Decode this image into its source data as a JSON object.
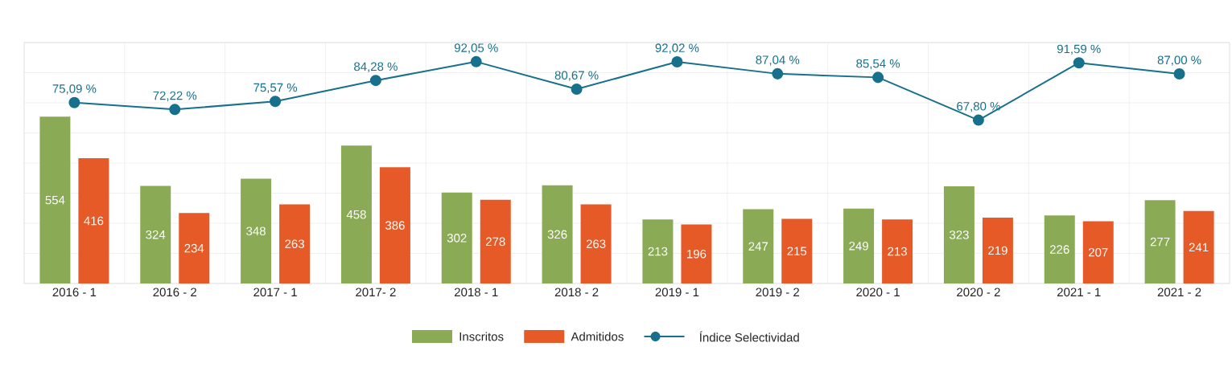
{
  "chart_data": {
    "type": "bar",
    "categories": [
      "2016 - 1",
      "2016 - 2",
      "2017 - 1",
      "2017- 2",
      "2018 - 1",
      "2018 - 2",
      "2019 - 1",
      "2019 - 2",
      "2020 - 1",
      "2020 - 2",
      "2021 - 1",
      "2021 - 2"
    ],
    "series": [
      {
        "name": "Inscritos",
        "color": "#8aaa55",
        "values": [
          554,
          324,
          348,
          458,
          302,
          326,
          213,
          247,
          249,
          323,
          226,
          277
        ],
        "value_labels": [
          "554",
          "324",
          "348",
          "458",
          "302",
          "326",
          "213",
          "247",
          "249",
          "323",
          "226",
          "277"
        ]
      },
      {
        "name": "Admitidos",
        "color": "#e55a27",
        "values": [
          416,
          234,
          263,
          386,
          278,
          263,
          196,
          215,
          213,
          219,
          207,
          241
        ],
        "value_labels": [
          "416",
          "234",
          "263",
          "386",
          "278",
          "263",
          "196",
          "215",
          "213",
          "219",
          "207",
          "241"
        ]
      },
      {
        "name": "Índice Selectividad",
        "type": "line",
        "axis": "y2",
        "color": "#17708c",
        "values": [
          75.09,
          72.22,
          75.57,
          84.28,
          92.05,
          80.67,
          92.02,
          87.04,
          85.54,
          67.8,
          91.59,
          87.0
        ],
        "value_labels": [
          "75,09 %",
          "72,22 %",
          "75,57 %",
          "84,28 %",
          "92,05 %",
          "80,67 %",
          "92,02 %",
          "87,04 %",
          "85,54 %",
          "67,80 %",
          "91,59 %",
          "87,00 %"
        ]
      }
    ],
    "ylim": [
      0,
      800
    ],
    "yticks": [
      {
        "value": 0,
        "label": null
      },
      {
        "value": 100,
        "label": null
      },
      {
        "value": 200,
        "label": null
      },
      {
        "value": 300,
        "label": null
      },
      {
        "value": 400,
        "label": null
      },
      {
        "value": 500,
        "label": null
      },
      {
        "value": 600,
        "label": null
      },
      {
        "value": 700,
        "label": null
      },
      {
        "value": 800,
        "label": null
      }
    ],
    "y2lim": [
      0,
      100
    ],
    "tick_labels": "x",
    "grid": true,
    "legend": "bottom",
    "marker": "circle",
    "line_style": "solid"
  }
}
